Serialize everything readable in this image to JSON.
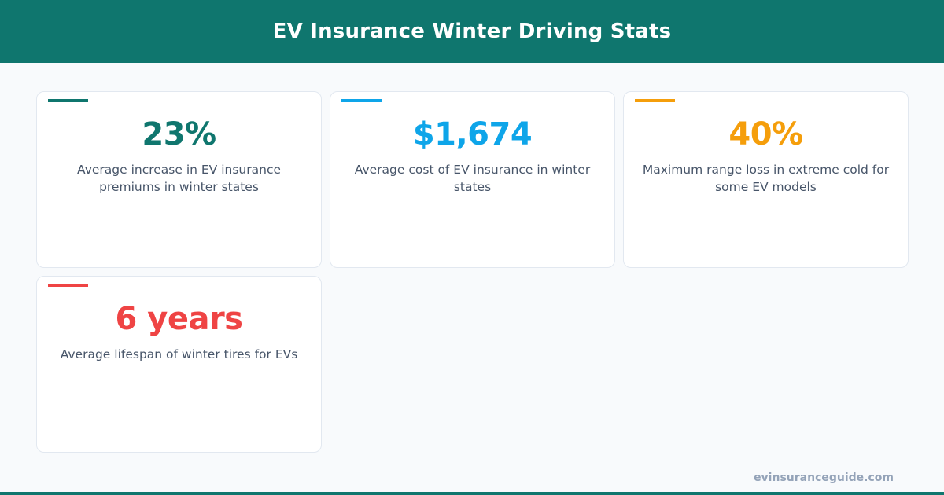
{
  "header": {
    "title": "EV Insurance Winter Driving Stats"
  },
  "stats": [
    {
      "value": "23%",
      "label": "Average increase in EV insurance premiums in winter states",
      "color": "#0f766e"
    },
    {
      "value": "$1,674",
      "label": "Average cost of EV insurance in winter states",
      "color": "#0ea5e9"
    },
    {
      "value": "40%",
      "label": "Maximum range loss in extreme cold for some EV models",
      "color": "#f59e0b"
    },
    {
      "value": "6 years",
      "label": "Average lifespan of winter tires for EVs",
      "color": "#ef4444"
    }
  ],
  "footer": {
    "site": "evinsuranceguide.com"
  }
}
